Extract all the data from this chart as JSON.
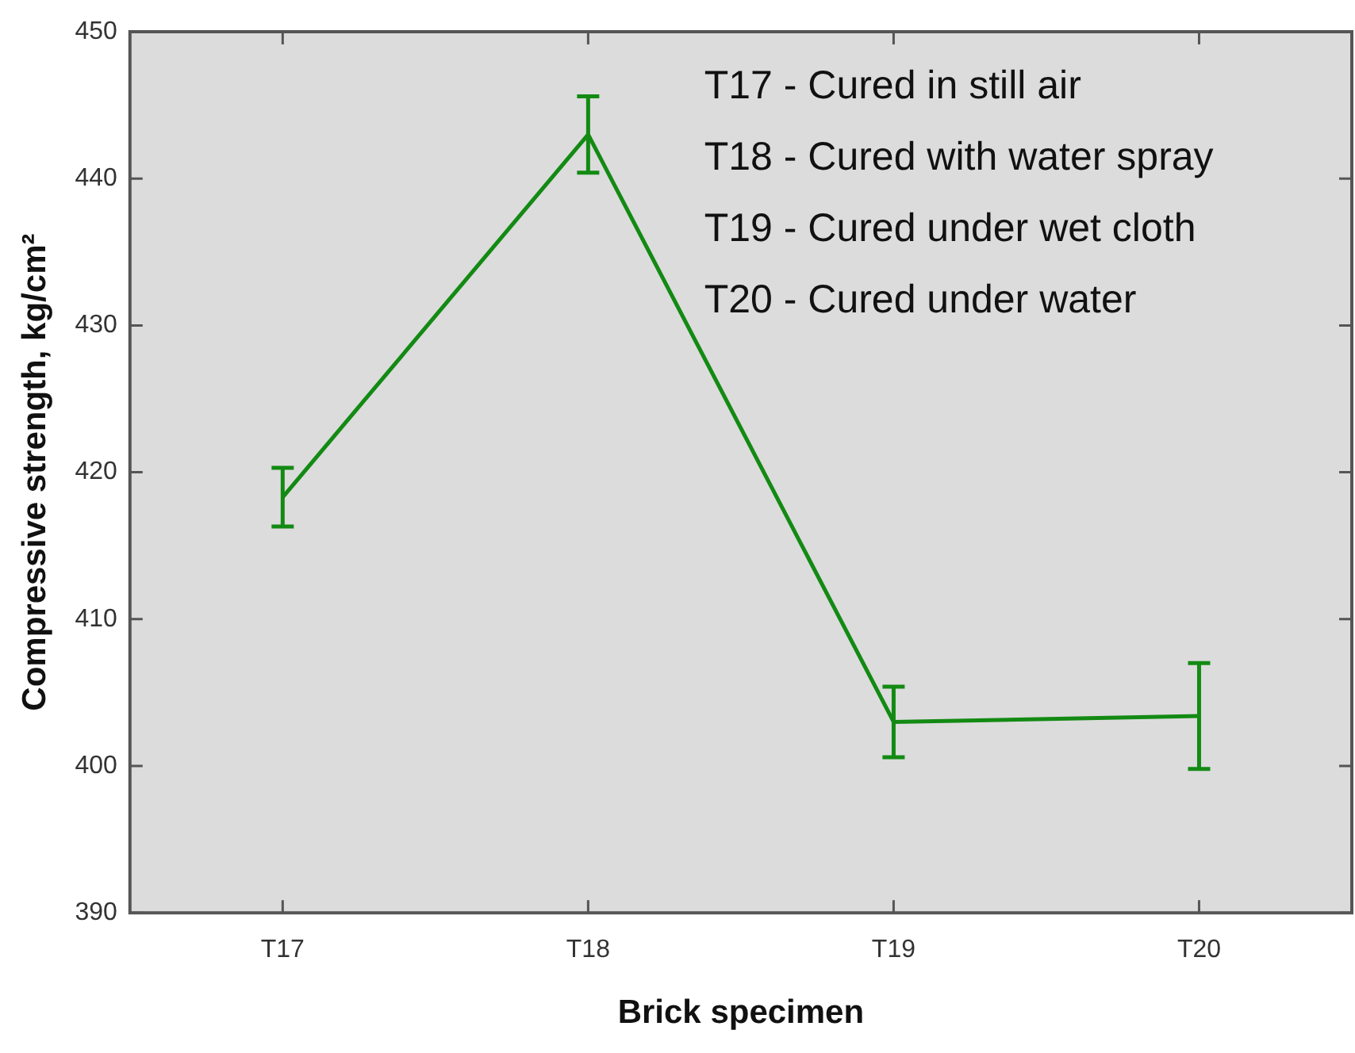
{
  "chart_data": {
    "type": "line",
    "xlabel": "Brick specimen",
    "ylabel": "Compressive strength, kg/cm²",
    "categories": [
      "T17",
      "T18",
      "T19",
      "T20"
    ],
    "series": [
      {
        "color": "#138a13",
        "values": [
          418.3,
          443,
          403,
          403.4
        ],
        "errors": [
          2,
          2.6,
          2.4,
          3.6
        ]
      }
    ],
    "ylim": [
      390,
      450
    ],
    "yticks": [
      390,
      400,
      410,
      420,
      430,
      440,
      450
    ],
    "grid": false,
    "legend": false,
    "marker": "none",
    "annotations": [
      "T17 - Cured in still air",
      "T18 - Cured with water spray",
      "T19 - Cured under wet cloth",
      "T20 - Cured under water"
    ]
  }
}
